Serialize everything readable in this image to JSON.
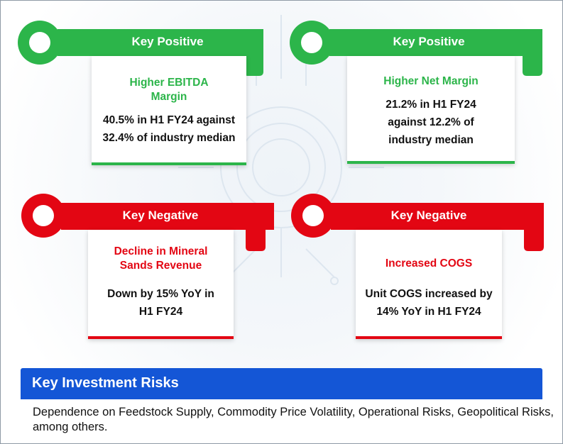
{
  "colors": {
    "positive": "#2cb54a",
    "negative": "#e30613",
    "risk_header": "#1456d6",
    "text": "#111111"
  },
  "keys": [
    {
      "label": "Key Positive",
      "title": "Higher EBITDA Margin",
      "body": "40.5% in H1 FY24 against 32.4% of industry median"
    },
    {
      "label": "Key Positive",
      "title": "Higher Net Margin",
      "body": "21.2% in H1 FY24 against 12.2% of industry median"
    },
    {
      "label": "Key Negative",
      "title": "Decline in Mineral Sands Revenue",
      "body": "Down by 15% YoY in H1 FY24"
    },
    {
      "label": "Key Negative",
      "title": "Increased COGS",
      "body": "Unit COGS increased by 14% YoY in H1 FY24"
    }
  ],
  "risks": {
    "title": "Key Investment Risks",
    "text": "Dependence on Feedstock Supply, Commodity Price Volatility, Operational Risks, Geopolitical Risks, among others."
  }
}
